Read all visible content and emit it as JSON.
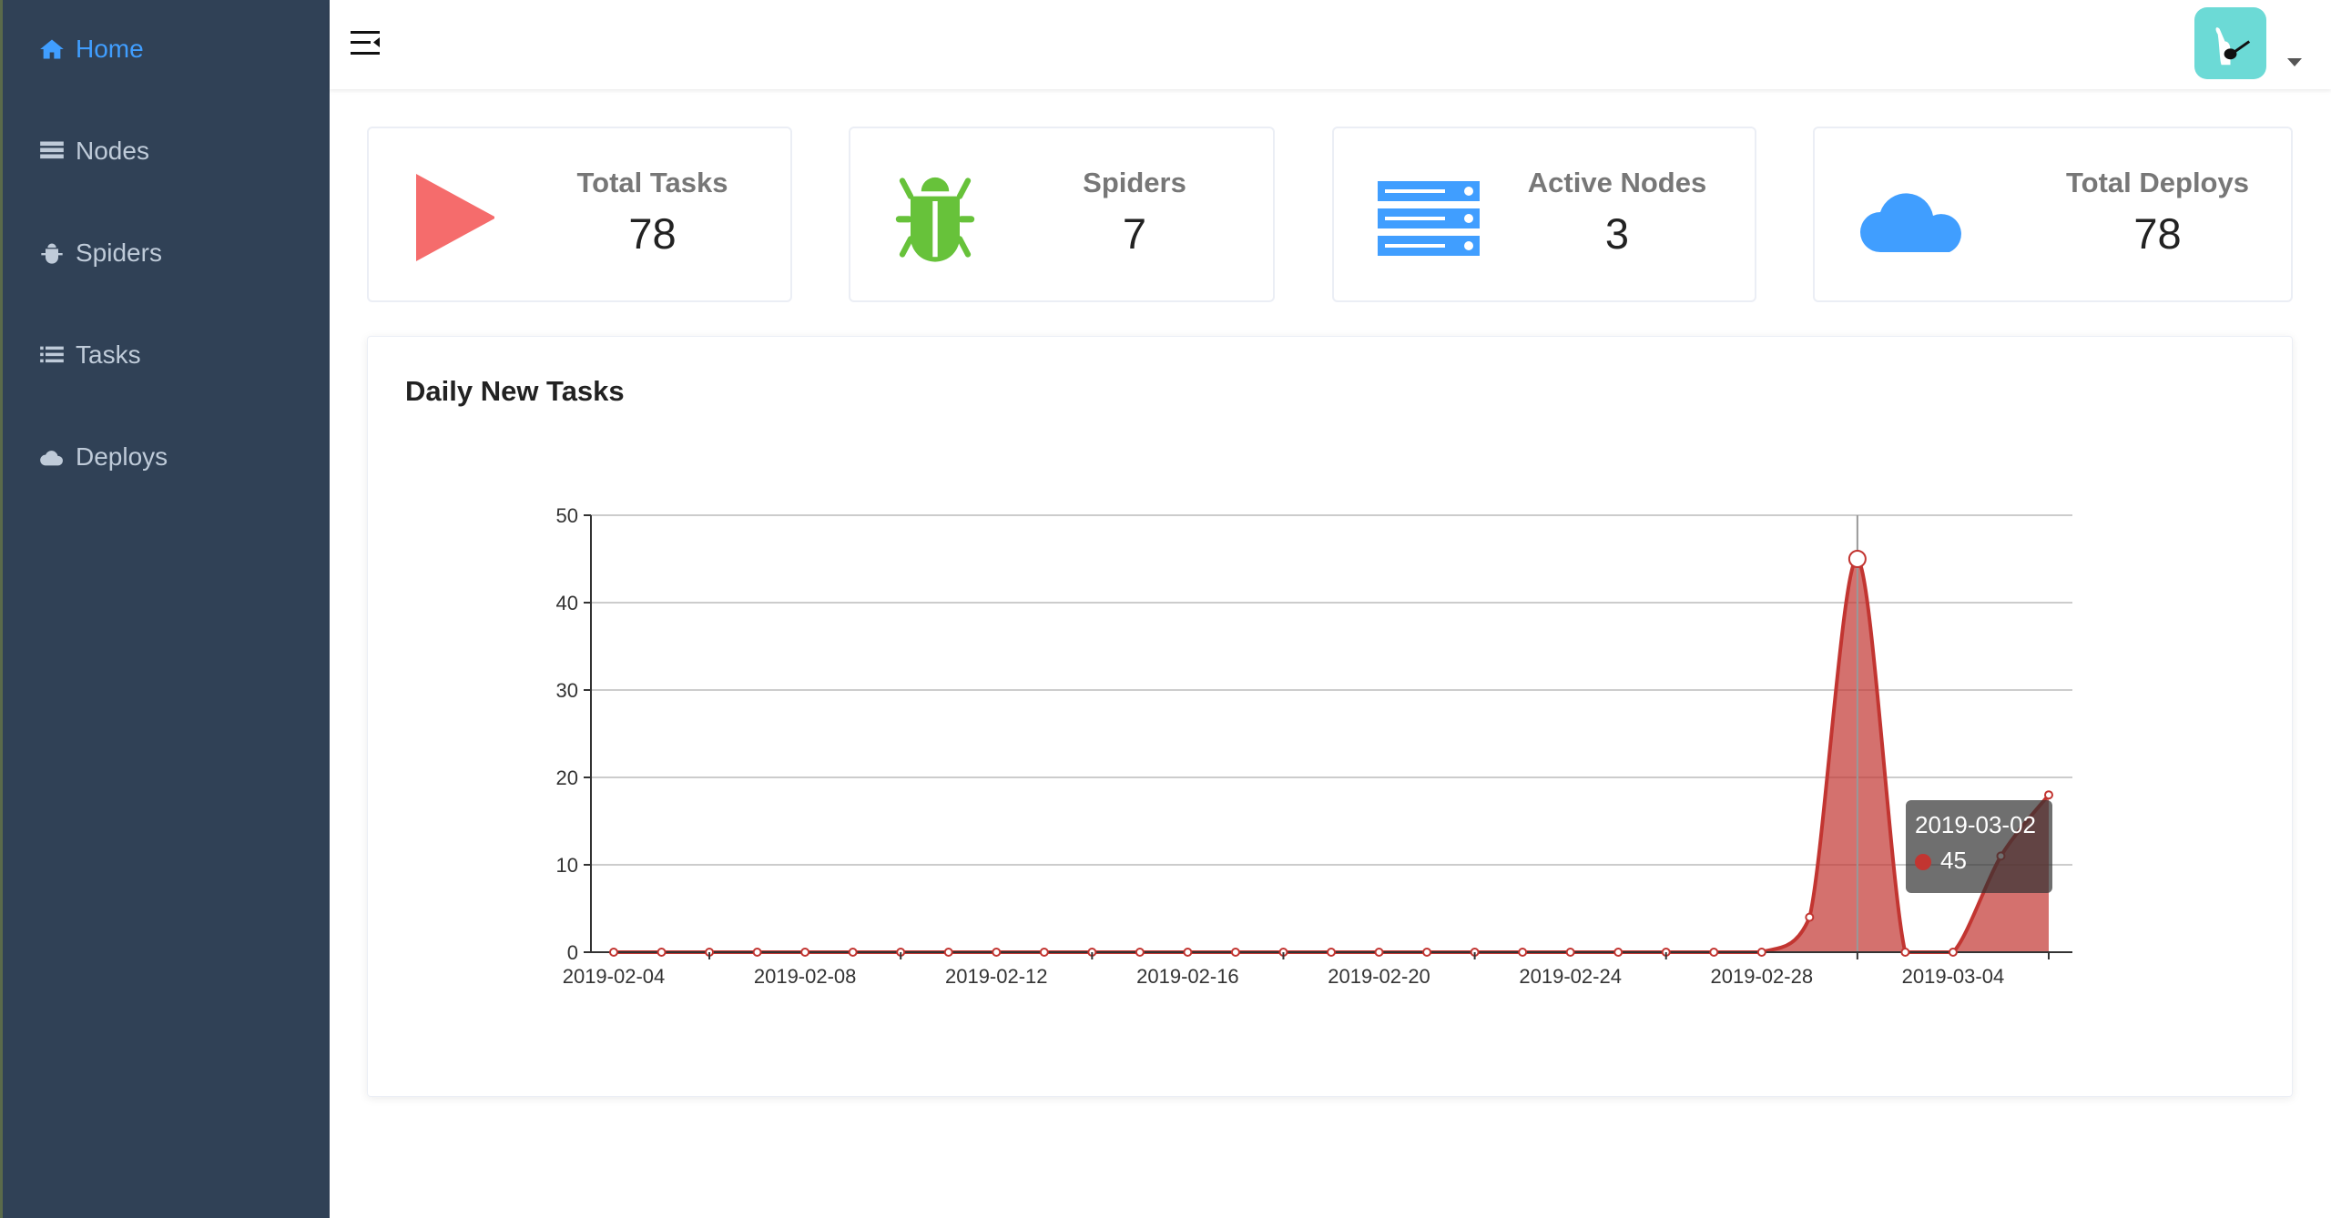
{
  "sidebar": {
    "items": [
      {
        "label": "Home",
        "icon": "home-icon",
        "active": true
      },
      {
        "label": "Nodes",
        "icon": "server-icon"
      },
      {
        "label": "Spiders",
        "icon": "bug-icon"
      },
      {
        "label": "Tasks",
        "icon": "list-icon"
      },
      {
        "label": "Deploys",
        "icon": "cloud-icon"
      }
    ]
  },
  "header": {
    "menu_icon": "menu-fold-icon",
    "avatar": "user-avatar",
    "dropdown_icon": "caret-down-icon"
  },
  "stats": [
    {
      "title": "Total Tasks",
      "value": "78",
      "icon": "play-icon",
      "color": "#f56c6c"
    },
    {
      "title": "Spiders",
      "value": "7",
      "icon": "bug-icon",
      "color": "#67c23a"
    },
    {
      "title": "Active Nodes",
      "value": "3",
      "icon": "server-icon",
      "color": "#409eff"
    },
    {
      "title": "Total Deploys",
      "value": "78",
      "icon": "cloud-icon",
      "color": "#409eff"
    }
  ],
  "chart_data": {
    "type": "area",
    "title": "Daily New Tasks",
    "x": [
      "2019-02-04",
      "2019-02-05",
      "2019-02-06",
      "2019-02-07",
      "2019-02-08",
      "2019-02-09",
      "2019-02-10",
      "2019-02-11",
      "2019-02-12",
      "2019-02-13",
      "2019-02-14",
      "2019-02-15",
      "2019-02-16",
      "2019-02-17",
      "2019-02-18",
      "2019-02-19",
      "2019-02-20",
      "2019-02-21",
      "2019-02-22",
      "2019-02-23",
      "2019-02-24",
      "2019-02-25",
      "2019-02-26",
      "2019-02-27",
      "2019-02-28",
      "2019-03-01",
      "2019-03-02",
      "2019-03-03",
      "2019-03-04",
      "2019-03-05",
      "2019-03-06"
    ],
    "values": [
      0,
      0,
      0,
      0,
      0,
      0,
      0,
      0,
      0,
      0,
      0,
      0,
      0,
      0,
      0,
      0,
      0,
      0,
      0,
      0,
      0,
      0,
      0,
      0,
      0,
      4,
      45,
      0,
      0,
      11,
      18
    ],
    "xticks": [
      "2019-02-04",
      "2019-02-08",
      "2019-02-12",
      "2019-02-16",
      "2019-02-20",
      "2019-02-24",
      "2019-02-28",
      "2019-03-04"
    ],
    "yticks": [
      0,
      10,
      20,
      30,
      40,
      50
    ],
    "ylim": [
      0,
      50
    ],
    "grid": true,
    "color": "#c23531",
    "tooltip": {
      "date": "2019-03-02",
      "value": "45"
    }
  }
}
